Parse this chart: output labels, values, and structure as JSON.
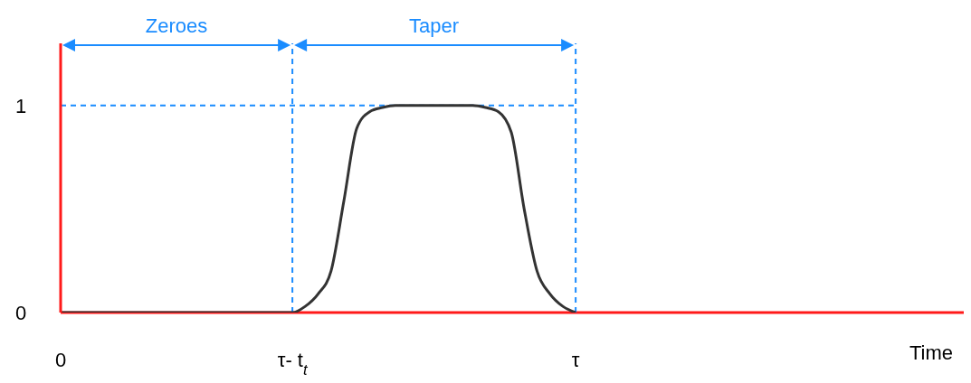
{
  "chart_data": {
    "type": "line",
    "xlabel": "Time",
    "categories": [
      "0",
      null,
      null,
      null,
      null,
      null,
      null,
      null,
      null,
      null,
      null,
      null,
      null,
      null,
      null,
      null,
      null,
      null,
      "τ- t$_{t}$",
      null,
      null,
      null,
      null,
      null,
      null,
      null,
      null,
      null,
      null,
      null,
      null,
      null,
      null,
      null,
      null,
      null,
      null,
      null,
      null,
      null,
      "τ",
      null,
      null,
      null,
      null,
      null,
      null,
      null,
      null,
      null,
      null,
      null,
      null,
      null,
      null,
      null,
      null,
      null,
      null,
      null,
      null,
      null,
      null,
      null,
      null,
      null,
      null,
      null,
      null,
      null,
      null
    ],
    "series": [
      {
        "color": "#333333",
        "values": [
          0,
          0,
          0,
          0,
          0,
          0,
          0,
          0,
          0,
          0,
          0,
          0,
          0,
          0,
          0,
          0,
          0,
          0,
          0,
          0.03,
          0.09,
          0.2,
          0.54,
          0.89,
          0.97,
          0.99,
          1,
          1,
          1,
          1,
          1,
          1,
          1,
          0.99,
          0.97,
          0.87,
          0.5,
          0.2,
          0.09,
          0.03,
          0,
          null,
          null,
          null,
          null,
          null,
          null,
          null,
          null,
          null,
          null,
          null,
          null,
          null,
          null,
          null,
          null,
          null,
          null,
          null,
          null,
          null,
          null,
          null,
          null,
          null,
          null,
          null,
          null,
          null,
          null
        ]
      }
    ],
    "ylim": [
      0,
      1.3
    ],
    "yticks": [
      0,
      1
    ],
    "ref_lines": [
      {
        "axis": "x",
        "value": "τ- t$_{t}$",
        "color": "#1a8cff",
        "line_style": "dashed"
      },
      {
        "axis": "x",
        "value": "τ",
        "color": "#1a8cff",
        "line_style": "dashed"
      },
      {
        "axis": "y",
        "value": 1,
        "color": "#1a8cff",
        "line_style": "dashed"
      }
    ],
    "annotations": [
      "Zeroes",
      "Taper"
    ],
    "grid": false,
    "legend": false,
    "marker": "none",
    "line_style": "solid"
  }
}
